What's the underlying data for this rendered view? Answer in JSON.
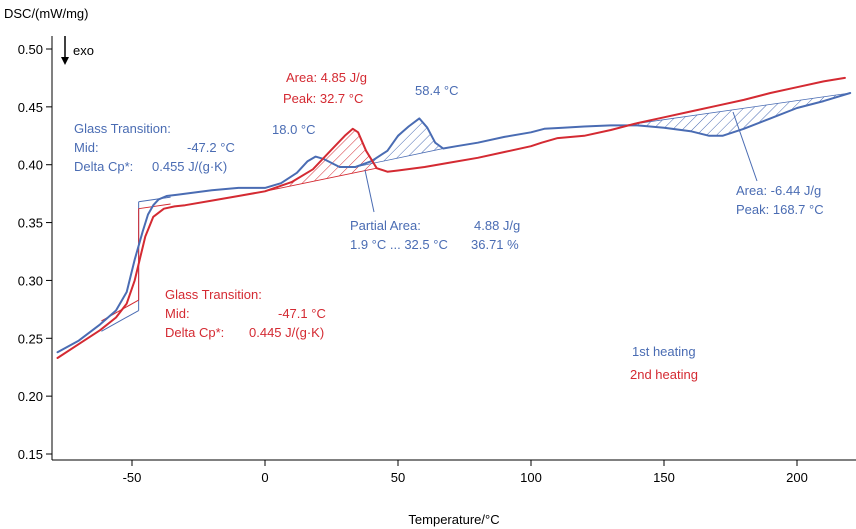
{
  "chart_data": {
    "type": "line",
    "ylabel": "DSC/(mW/mg)",
    "xlabel": "Temperature/°C",
    "exo_label": "exo",
    "xlim": [
      -78,
      220
    ],
    "ylim": [
      0.15,
      0.51
    ],
    "x_ticks": [
      -50,
      0,
      50,
      100,
      150,
      200
    ],
    "y_ticks": [
      0.15,
      0.2,
      0.25,
      0.3,
      0.35,
      0.4,
      0.45,
      0.5
    ],
    "grid": false,
    "legend": "right",
    "colors": {
      "heating1": "#4a6cb3",
      "heating2": "#d42a32"
    },
    "series": [
      {
        "name": "1st heating",
        "x": [
          -78,
          -70,
          -62,
          -56,
          -52,
          -49,
          -46,
          -44,
          -42,
          -40,
          -37,
          -33,
          -20,
          -10,
          0,
          6,
          12,
          16,
          19,
          22,
          28,
          34,
          40,
          46,
          50,
          54,
          58,
          61,
          64,
          67,
          72,
          80,
          90,
          100,
          105,
          112,
          120,
          130,
          140,
          150,
          160,
          167,
          172,
          180,
          190,
          200,
          210,
          220
        ],
        "values": [
          0.238,
          0.248,
          0.262,
          0.274,
          0.29,
          0.318,
          0.342,
          0.357,
          0.365,
          0.37,
          0.373,
          0.374,
          0.378,
          0.38,
          0.38,
          0.384,
          0.393,
          0.403,
          0.407,
          0.405,
          0.398,
          0.398,
          0.403,
          0.412,
          0.425,
          0.433,
          0.44,
          0.432,
          0.419,
          0.414,
          0.416,
          0.419,
          0.424,
          0.428,
          0.431,
          0.432,
          0.433,
          0.434,
          0.434,
          0.432,
          0.429,
          0.425,
          0.425,
          0.431,
          0.44,
          0.449,
          0.455,
          0.462
        ]
      },
      {
        "name": "2nd heating",
        "x": [
          -78,
          -70,
          -62,
          -56,
          -52,
          -49,
          -47,
          -45,
          -42,
          -38,
          -34,
          -30,
          -20,
          -10,
          0,
          10,
          18,
          25,
          30,
          33,
          35,
          38,
          42,
          46,
          50,
          60,
          70,
          80,
          90,
          100,
          104,
          110,
          120,
          130,
          140,
          150,
          160,
          170,
          180,
          190,
          200,
          210,
          218
        ],
        "values": [
          0.233,
          0.245,
          0.257,
          0.268,
          0.28,
          0.3,
          0.319,
          0.338,
          0.355,
          0.362,
          0.364,
          0.365,
          0.369,
          0.373,
          0.377,
          0.385,
          0.396,
          0.413,
          0.425,
          0.431,
          0.428,
          0.412,
          0.397,
          0.394,
          0.395,
          0.398,
          0.402,
          0.406,
          0.411,
          0.416,
          0.419,
          0.423,
          0.425,
          0.43,
          0.436,
          0.441,
          0.446,
          0.451,
          0.456,
          0.462,
          0.467,
          0.472,
          0.475
        ]
      }
    ],
    "hatched_regions": [
      {
        "series": "2nd heating",
        "x_start": 0,
        "x_end": 42,
        "y_start": 0.377,
        "y_end": 0.397
      },
      {
        "series": "1st heating",
        "x_start": 34,
        "x_end": 67,
        "y_start": 0.398,
        "y_end": 0.414
      },
      {
        "series": "1st heating",
        "x_start": 135,
        "x_end": 220,
        "y_start": 0.434,
        "y_end": 0.462
      }
    ],
    "glass_transition_boxes": [
      {
        "series": "1st heating",
        "x": -47.5,
        "y_top": 0.368,
        "y_bottom": 0.274
      },
      {
        "series": "2nd heating",
        "x": -47.5,
        "y_top": 0.362,
        "y_bottom": 0.283
      }
    ],
    "annotations": {
      "gt1_title": "Glass Transition:",
      "gt1_mid_label": "Mid:",
      "gt1_mid_value": "-47.2 °C",
      "gt1_cp_label": "Delta Cp*:",
      "gt1_cp_value": "0.455 J/(g·K)",
      "gt2_title": "Glass Transition:",
      "gt2_mid_label": "Mid:",
      "gt2_mid_value": "-47.1 °C",
      "gt2_cp_label": "Delta Cp*:",
      "gt2_cp_value": "0.445 J/(g·K)",
      "peak_18": "18.0 °C",
      "peak_58": "58.4 °C",
      "area_red": "Area: 4.85 J/g",
      "peak_red": "Peak: 32.7 °C",
      "partial_label": "Partial Area:",
      "partial_value": "4.88 J/g",
      "partial_range": "1.9 °C ... 32.5 °C",
      "partial_pct": "36.71 %",
      "area_blue": "Area: -6.44 J/g",
      "peak_blue": "Peak: 168.7 °C",
      "legend_1": "1st heating",
      "legend_2": "2nd heating"
    }
  }
}
